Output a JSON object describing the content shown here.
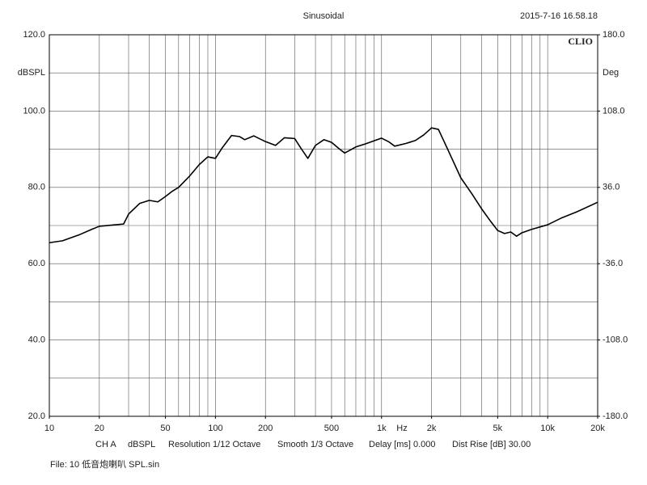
{
  "chart_data": {
    "type": "line",
    "title": "Sinusoidal",
    "timestamp": "2015-7-16 16.58.18",
    "logo": "CLIO",
    "y_label": "dBSPL",
    "y2_label": "Deg",
    "x_label": "Hz",
    "info_line": [
      "CH A",
      "dBSPL",
      "Resolution 1/12 Octave",
      "Smooth 1/3 Octave",
      "Delay [ms] 0.000",
      "Dist Rise [dB] 30.00"
    ],
    "file_label": "File: 10 低音炮喇叭 SPL.sin",
    "x_scale": "log",
    "xlim": [
      10,
      20000
    ],
    "xticks": [
      10,
      20,
      50,
      100,
      200,
      500,
      {
        "value": 1000,
        "label": "1k"
      },
      {
        "value": 2000,
        "label": "2k"
      },
      {
        "value": 5000,
        "label": "5k"
      },
      {
        "value": 10000,
        "label": "10k"
      },
      {
        "value": 20000,
        "label": "20k"
      }
    ],
    "xgrid": [
      10,
      20,
      30,
      40,
      50,
      60,
      70,
      80,
      90,
      100,
      200,
      300,
      400,
      500,
      600,
      700,
      800,
      900,
      1000,
      2000,
      3000,
      4000,
      5000,
      6000,
      7000,
      8000,
      9000,
      10000,
      20000
    ],
    "ylim": [
      20,
      120
    ],
    "yticks": [
      {
        "value": 20,
        "label": "20.0"
      },
      {
        "value": 40,
        "label": "40.0"
      },
      {
        "value": 60,
        "label": "60.0"
      },
      {
        "value": 80,
        "label": "80.0"
      },
      {
        "value": 100,
        "label": "100.0"
      },
      {
        "value": 120,
        "label": "120.0"
      }
    ],
    "yminor": [
      30,
      50,
      70,
      90,
      110
    ],
    "y2lim": [
      -180,
      180
    ],
    "y2ticks": [
      {
        "value": -180,
        "label": "-180.0"
      },
      {
        "value": -108,
        "label": "-108.0"
      },
      {
        "value": -36,
        "label": "-36.0"
      },
      {
        "value": 36,
        "label": "36.0"
      },
      {
        "value": 108,
        "label": "108.0"
      },
      {
        "value": 180,
        "label": "180.0"
      }
    ],
    "grid": true,
    "color": "#000000",
    "x": [
      10,
      12,
      15,
      18,
      20,
      25,
      28,
      30,
      35,
      40,
      45,
      50,
      55,
      60,
      70,
      80,
      90,
      100,
      110,
      125,
      140,
      150,
      170,
      200,
      230,
      260,
      300,
      330,
      360,
      400,
      450,
      500,
      560,
      600,
      700,
      800,
      1000,
      1100,
      1200,
      1400,
      1600,
      1800,
      2000,
      2200,
      2500,
      3000,
      3500,
      4000,
      4500,
      5000,
      5500,
      6000,
      6500,
      7000,
      8000,
      10000,
      12000,
      15000,
      20000
    ],
    "values": [
      65.5,
      66,
      67.5,
      69,
      69.8,
      70.2,
      70.4,
      73,
      75.8,
      76.6,
      76.2,
      77.6,
      79,
      80,
      83,
      86,
      88,
      87.6,
      90.4,
      93.6,
      93.3,
      92.5,
      93.5,
      92,
      91,
      93,
      92.8,
      90,
      87.6,
      91,
      92.5,
      91.8,
      90,
      89,
      90.6,
      91.4,
      92.9,
      92,
      90.8,
      91.5,
      92.3,
      93.8,
      95.6,
      95.2,
      90,
      82.5,
      78.3,
      74.4,
      71.3,
      68.7,
      67.9,
      68.3,
      67.2,
      68.1,
      69,
      70.2,
      71.9,
      73.6,
      76.1
    ]
  }
}
